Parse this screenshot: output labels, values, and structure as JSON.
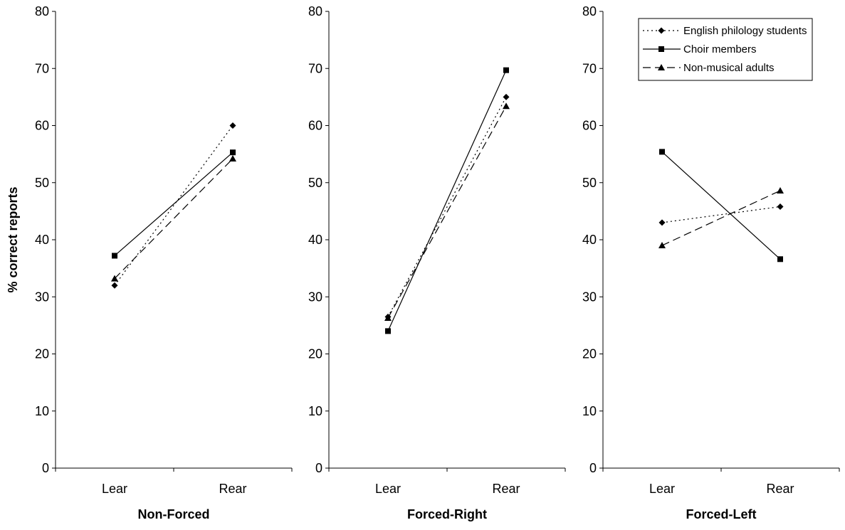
{
  "chart_data": {
    "type": "line",
    "ylabel": "% correct reports",
    "ylim": [
      0,
      80
    ],
    "yticks": [
      0,
      10,
      20,
      30,
      40,
      50,
      60,
      70,
      80
    ],
    "categories": [
      "Lear",
      "Rear"
    ],
    "legend": {
      "placement": "top-right of third panel",
      "entries": [
        "English philology students",
        "Choir members",
        "Non-musical adults"
      ]
    },
    "series_styles": [
      {
        "name": "English philology students",
        "marker": "diamond",
        "dash": "dotted",
        "color": "#000000"
      },
      {
        "name": "Choir members",
        "marker": "square",
        "dash": "solid",
        "color": "#000000"
      },
      {
        "name": "Non-musical adults",
        "marker": "triangle",
        "dash": "dashed",
        "color": "#000000"
      }
    ],
    "panels": [
      {
        "title": "Non-Forced",
        "series": [
          {
            "name": "English philology students",
            "values": [
              32,
              60
            ]
          },
          {
            "name": "Choir members",
            "values": [
              37.2,
              55.3
            ]
          },
          {
            "name": "Non-musical adults",
            "values": [
              33.2,
              54.2
            ]
          }
        ]
      },
      {
        "title": "Forced-Right",
        "series": [
          {
            "name": "English philology students",
            "values": [
              26.5,
              65
            ]
          },
          {
            "name": "Choir members",
            "values": [
              24,
              69.7
            ]
          },
          {
            "name": "Non-musical adults",
            "values": [
              26.3,
              63.4
            ]
          }
        ]
      },
      {
        "title": "Forced-Left",
        "series": [
          {
            "name": "English philology students",
            "values": [
              43,
              45.8
            ]
          },
          {
            "name": "Choir members",
            "values": [
              55.4,
              36.6
            ]
          },
          {
            "name": "Non-musical adults",
            "values": [
              39,
              48.6
            ]
          }
        ]
      }
    ]
  }
}
